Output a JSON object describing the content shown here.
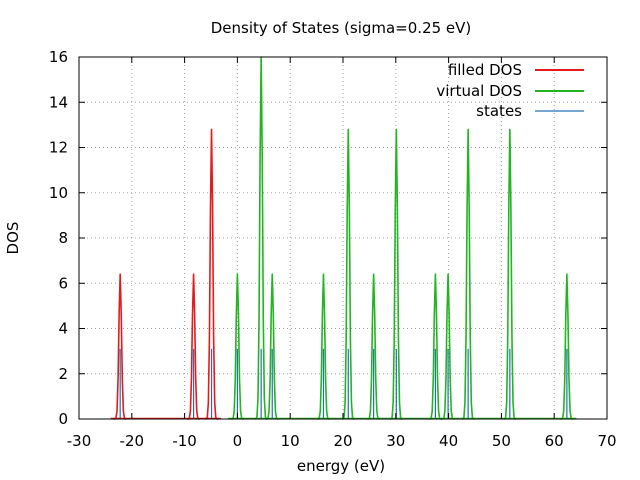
{
  "chart_data": {
    "type": "line",
    "title": "Density of States (sigma=0.25 eV)",
    "xlabel": "energy (eV)",
    "ylabel": "DOS",
    "xlim": [
      -30,
      70
    ],
    "ylim": [
      0,
      16
    ],
    "xticks": [
      -30,
      -20,
      -10,
      0,
      10,
      20,
      30,
      40,
      50,
      60,
      70
    ],
    "yticks": [
      0,
      2,
      4,
      6,
      8,
      10,
      12,
      14,
      16
    ],
    "grid": true,
    "legend_position": "top-right",
    "sigma": 0.25,
    "series": [
      {
        "name": "filled DOS",
        "color": "#e41a1c",
        "style": "line",
        "peaks": [
          {
            "x": -22.2,
            "height": 6.4
          },
          {
            "x": -8.3,
            "height": 6.4
          },
          {
            "x": -4.9,
            "height": 12.8
          }
        ]
      },
      {
        "name": "virtual DOS",
        "color": "#22b522",
        "style": "line",
        "peaks": [
          {
            "x": 0.0,
            "height": 6.4
          },
          {
            "x": 4.5,
            "height": 16.0
          },
          {
            "x": 6.6,
            "height": 6.4
          },
          {
            "x": 16.3,
            "height": 6.4
          },
          {
            "x": 21.0,
            "height": 12.8
          },
          {
            "x": 25.8,
            "height": 6.4
          },
          {
            "x": 30.1,
            "height": 12.8
          },
          {
            "x": 37.5,
            "height": 6.4
          },
          {
            "x": 39.9,
            "height": 6.4
          },
          {
            "x": 43.7,
            "height": 12.8
          },
          {
            "x": 51.6,
            "height": 12.8
          },
          {
            "x": 62.4,
            "height": 6.4
          }
        ]
      },
      {
        "name": "states",
        "color": "#2070b4",
        "style": "impulses",
        "x": [
          -22.2,
          -8.3,
          -4.9,
          0.0,
          4.5,
          6.6,
          16.3,
          21.0,
          25.8,
          30.1,
          37.5,
          39.9,
          43.7,
          51.6,
          62.4
        ],
        "values": [
          3.1,
          3.1,
          3.1,
          3.1,
          3.1,
          3.1,
          3.1,
          3.1,
          3.1,
          3.1,
          3.1,
          3.1,
          3.1,
          3.1,
          3.1
        ]
      }
    ]
  }
}
